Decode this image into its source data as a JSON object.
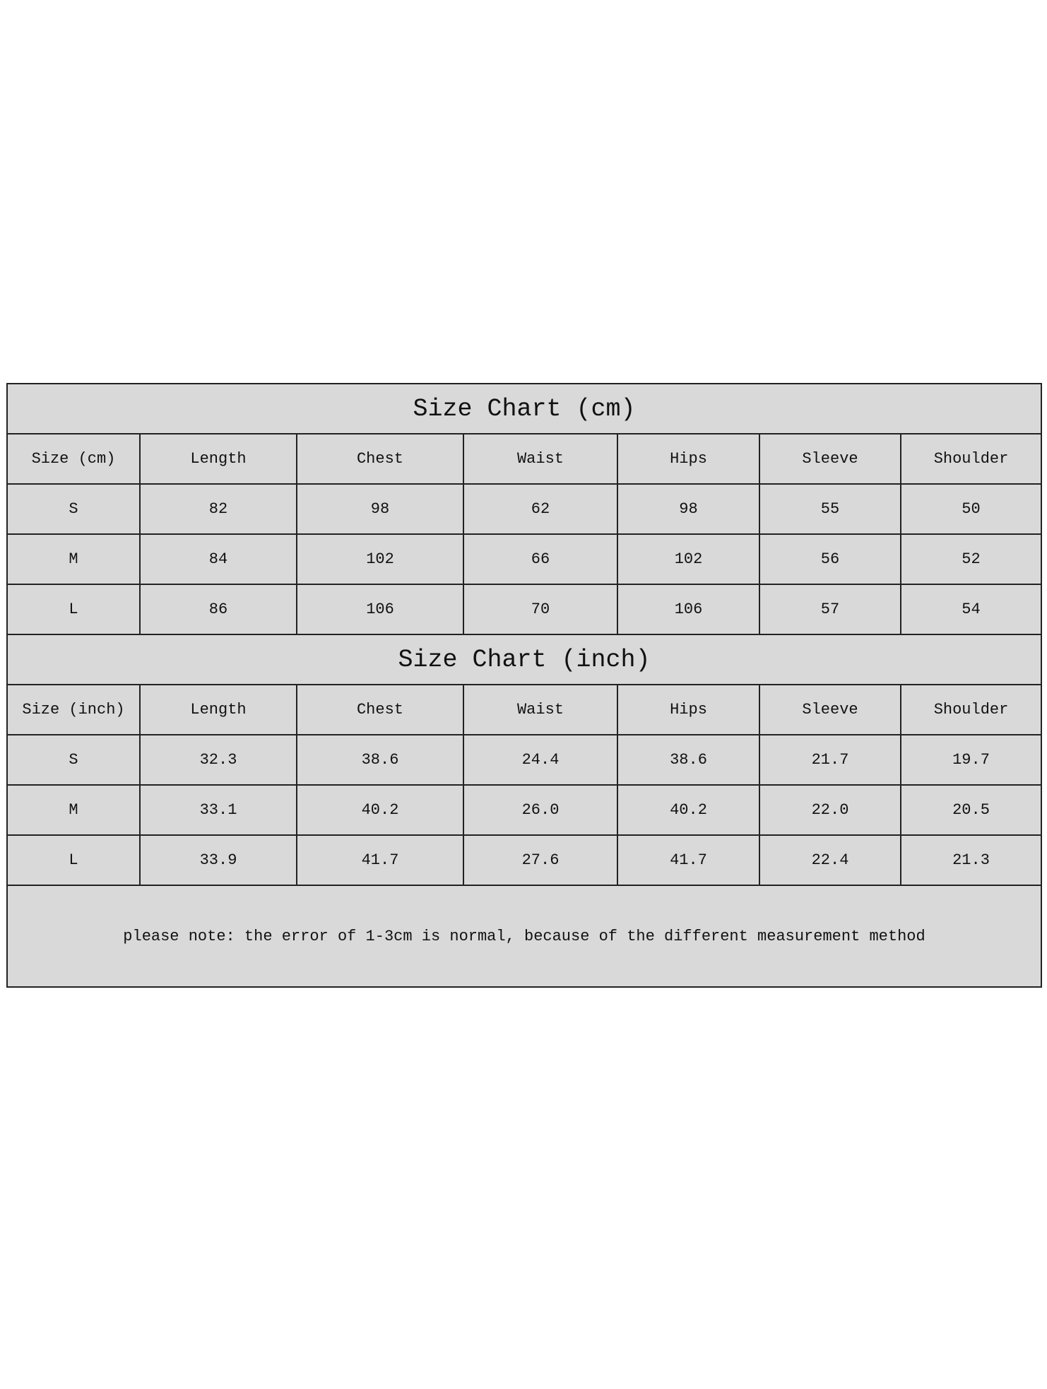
{
  "cm_table": {
    "title": "Size Chart (cm)",
    "headers": [
      "Size (cm)",
      "Length",
      "Chest",
      "Waist",
      "Hips",
      "Sleeve",
      "Shoulder"
    ],
    "rows": [
      [
        "S",
        "82",
        "98",
        "62",
        "98",
        "55",
        "50"
      ],
      [
        "M",
        "84",
        "102",
        "66",
        "102",
        "56",
        "52"
      ],
      [
        "L",
        "86",
        "106",
        "70",
        "106",
        "57",
        "54"
      ]
    ]
  },
  "inch_table": {
    "title": "Size Chart (inch)",
    "headers": [
      "Size (inch)",
      "Length",
      "Chest",
      "Waist",
      "Hips",
      "Sleeve",
      "Shoulder"
    ],
    "rows": [
      [
        "S",
        "32.3",
        "38.6",
        "24.4",
        "38.6",
        "21.7",
        "19.7"
      ],
      [
        "M",
        "33.1",
        "40.2",
        "26.0",
        "40.2",
        "22.0",
        "20.5"
      ],
      [
        "L",
        "33.9",
        "41.7",
        "27.6",
        "41.7",
        "22.4",
        "21.3"
      ]
    ]
  },
  "note": "please note: the error of 1-3cm is normal, because of the different measurement method",
  "colors": {
    "cell_background": "#d9d9d9",
    "border": "#222222"
  }
}
